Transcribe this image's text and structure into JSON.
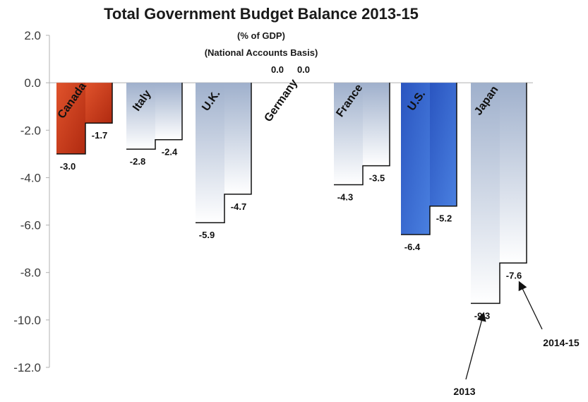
{
  "chart_data": {
    "type": "bar",
    "title": "Total Government Budget Balance 2013-15",
    "subtitle_lines": [
      "(% of GDP)",
      "(National Accounts Basis)"
    ],
    "xlabel": "",
    "ylabel": "",
    "ylim": [
      -12.0,
      2.0
    ],
    "yticks": [
      2.0,
      0.0,
      -2.0,
      -4.0,
      -6.0,
      -8.0,
      -10.0,
      -12.0
    ],
    "grid": false,
    "categories": [
      "Canada",
      "Italy",
      "U.K.",
      "Germany",
      "France",
      "U.S.",
      "Japan"
    ],
    "series": [
      {
        "name": "2013",
        "values": [
          -3.0,
          -2.8,
          -5.9,
          0.0,
          -4.3,
          -6.4,
          -9.3
        ]
      },
      {
        "name": "2014-15",
        "values": [
          -1.7,
          -2.4,
          -4.7,
          0.0,
          -3.5,
          -5.2,
          -7.6
        ]
      }
    ],
    "data_labels": {
      "2013": [
        "-3.0",
        "-2.8",
        "-5.9",
        "0.0",
        "-4.3",
        "-6.4",
        "-9.3"
      ],
      "2014-15": [
        "-1.7",
        "-2.4",
        "-4.7",
        "0.0",
        "-3.5",
        "-5.2",
        "-7.6"
      ]
    },
    "annotations": [
      "2013",
      "2014-15"
    ],
    "colors": {
      "canada": "#c8381a",
      "us": "#2e63c8",
      "default_top": "#9fb0cc",
      "default_bottom": "#ffffff",
      "outline": "#111111"
    }
  }
}
